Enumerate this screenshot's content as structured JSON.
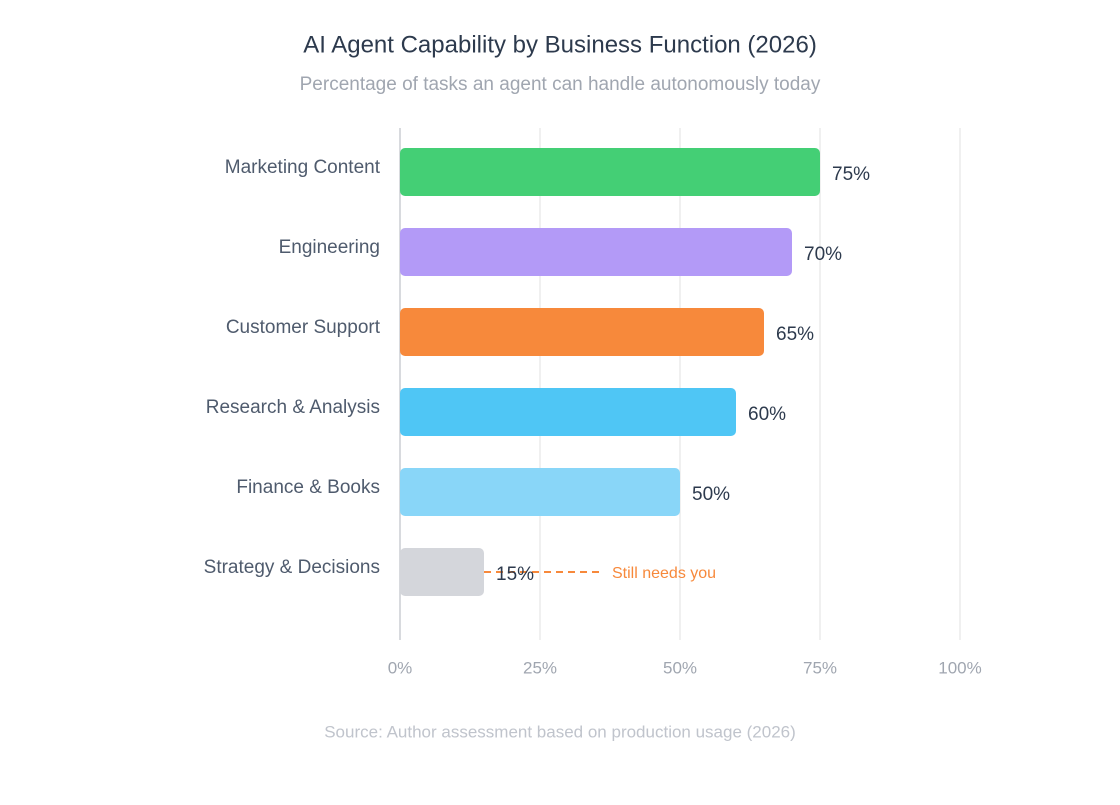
{
  "chart_data": {
    "type": "bar",
    "orientation": "horizontal",
    "title": "AI Agent Capability by Business Function (2026)",
    "subtitle": "Percentage of tasks an agent can handle autonomously today",
    "source": "Source: Author assessment based on production usage (2026)",
    "categories": [
      "Marketing Content",
      "Engineering",
      "Customer Support",
      "Research & Analysis",
      "Finance & Books",
      "Strategy & Decisions"
    ],
    "values": [
      75,
      70,
      65,
      60,
      50,
      15
    ],
    "value_labels": [
      "75%",
      "70%",
      "65%",
      "60%",
      "50%",
      "15%"
    ],
    "colors": [
      "#44cf75",
      "#b39af7",
      "#f7893b",
      "#4fc6f5",
      "#89d6f8",
      "#d4d6db"
    ],
    "annotation": "Still needs you",
    "annotation_color": "#f7893b",
    "xlim": [
      0,
      100
    ],
    "xticks": [
      {
        "value": 0,
        "label": "0%"
      },
      {
        "value": 25,
        "label": "25%"
      },
      {
        "value": 50,
        "label": "50%"
      },
      {
        "value": 75,
        "label": "75%"
      },
      {
        "value": 100,
        "label": "100%"
      }
    ],
    "grid": true
  }
}
